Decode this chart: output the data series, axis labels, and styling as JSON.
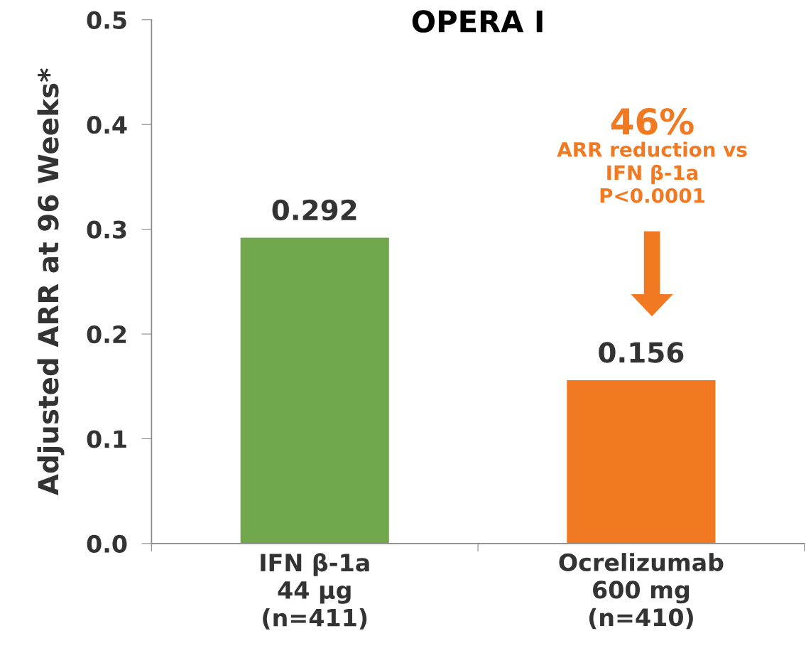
{
  "chart_data": {
    "type": "bar",
    "title": "OPERA I",
    "ylabel": "Adjusted ARR at 96 Weeks*",
    "categories": [
      "IFN β-1a\n44 µg\n(n=411)",
      "Ocrelizumab\n600 mg\n(n=410)"
    ],
    "values": [
      0.292,
      0.156
    ],
    "colors": [
      "#72a84d",
      "#f07921"
    ],
    "ylim": [
      0,
      0.5
    ],
    "yticks": [
      "0.0",
      0.1,
      0.2,
      0.3,
      0.4,
      0.5
    ],
    "data_labels": true,
    "grid": false,
    "legend": false,
    "annotations": [
      "46%",
      "ARR reduction vs\nIFN β-1a\nP<0.0001"
    ]
  }
}
